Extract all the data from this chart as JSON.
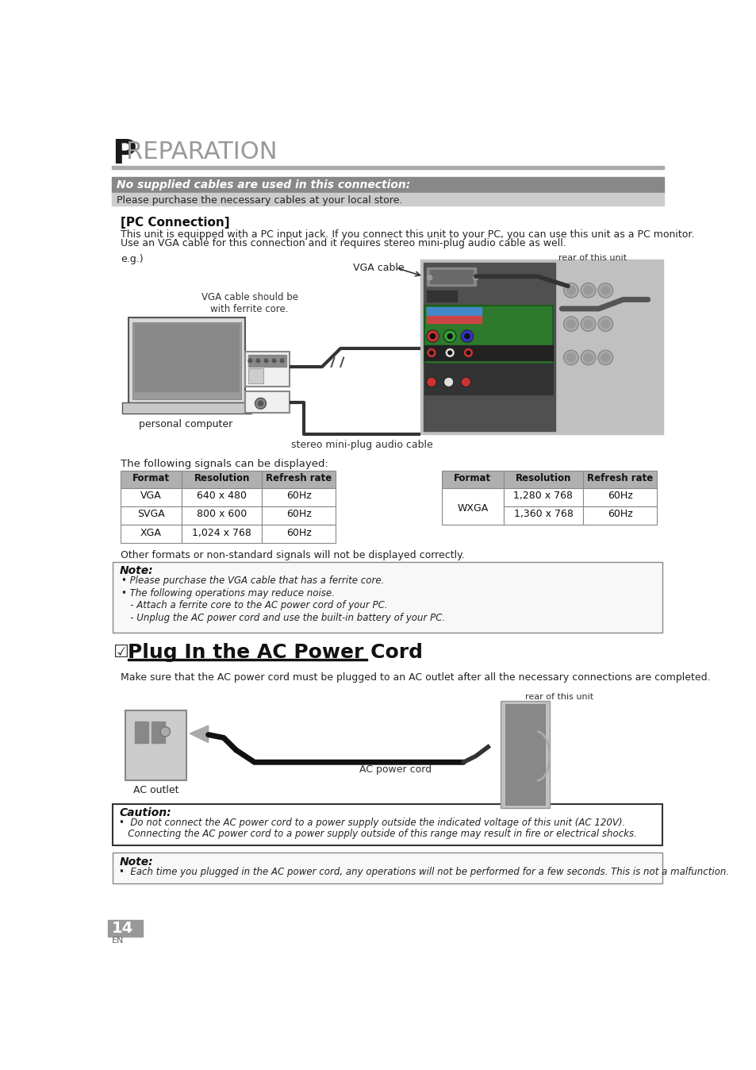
{
  "title_P": "P",
  "title_rest": "REPARATION",
  "banner_text": "No supplied cables are used in this connection:",
  "banner_subtext": "Please purchase the necessary cables at your local store.",
  "section_title": "[PC Connection]",
  "section_body1": "This unit is equipped with a PC input jack. If you connect this unit to your PC, you can use this unit as a PC monitor.",
  "section_body2": "Use an VGA cable for this connection and it requires stereo mini-plug audio cable as well.",
  "eg_label": "e.g.)",
  "rear_label": "rear of this unit",
  "vga_cable_label": "VGA cable",
  "vga_ferrite_label": "VGA cable should be\nwith ferrite core.",
  "personal_computer_label": "personal computer",
  "stereo_cable_label": "stereo mini-plug audio cable",
  "following_signals": "The following signals can be displayed:",
  "table_headers": [
    "Format",
    "Resolution",
    "Refresh rate",
    "Format",
    "Resolution",
    "Refresh rate"
  ],
  "table_rows_left": [
    [
      "VGA",
      "640 x 480",
      "60Hz"
    ],
    [
      "SVGA",
      "800 x 600",
      "60Hz"
    ],
    [
      "XGA",
      "1,024 x 768",
      "60Hz"
    ]
  ],
  "table_rows_right_format": "WXGA",
  "table_rows_right": [
    [
      "1,280 x 768",
      "60Hz"
    ],
    [
      "1,360 x 768",
      "60Hz"
    ]
  ],
  "other_formats_text": "Other formats or non-standard signals will not be displayed correctly.",
  "note1_title": "Note:",
  "note1_lines": [
    "• Please purchase the VGA cable that has a ferrite core.",
    "• The following operations may reduce noise.",
    "   - Attach a ferrite core to the AC power cord of your PC.",
    "   - Unplug the AC power cord and use the built-in battery of your PC."
  ],
  "plug_section_title": "Plug In the AC Power Cord",
  "plug_body": "Make sure that the AC power cord must be plugged to an AC outlet after all the necessary connections are completed.",
  "ac_outlet_label": "AC outlet",
  "ac_power_cord_label": "AC power cord",
  "rear_label2": "rear of this unit",
  "caution_title": "Caution:",
  "caution_lines": [
    "•  Do not connect the AC power cord to a power supply outside the indicated voltage of this unit (AC 120V).",
    "   Connecting the AC power cord to a power supply outside of this range may result in fire or electrical shocks."
  ],
  "note2_title": "Note:",
  "note2_lines": [
    "•  Each time you plugged in the AC power cord, any operations will not be performed for a few seconds. This is not a malfunction."
  ],
  "page_number": "14",
  "page_en": "EN"
}
